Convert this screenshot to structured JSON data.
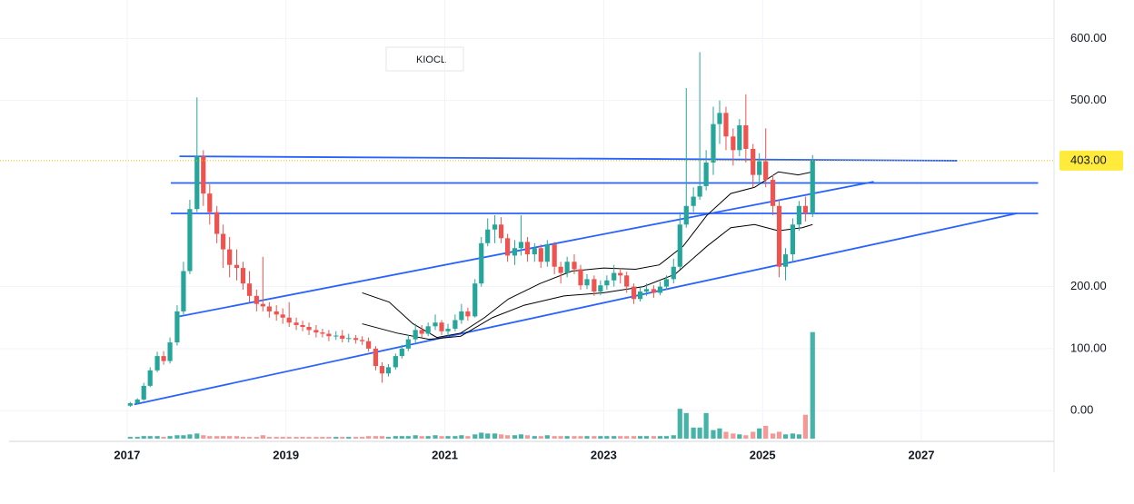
{
  "chart_data": {
    "type": "candlestick",
    "symbol": "KIOCL",
    "xlim": [
      2015.4,
      2028.67
    ],
    "ylim": [
      -48,
      662
    ],
    "xticks": [
      2017,
      2019,
      2021,
      2023,
      2025,
      2027
    ],
    "yticks": [
      {
        "value": 0,
        "label": "0.00"
      },
      {
        "value": 100,
        "label": "100.00"
      },
      {
        "value": 200,
        "label": "200.00"
      },
      {
        "value": 500,
        "label": "500.00"
      },
      {
        "value": 600,
        "label": "600.00"
      }
    ],
    "grid": true,
    "up_color": "#26a69a",
    "down_color": "#ef5350",
    "last_price": {
      "value": 403,
      "label": "403.00"
    },
    "last_price_color": "#ffeb3b",
    "candles": {
      "x": [
        2017.04,
        2017.13,
        2017.21,
        2017.29,
        2017.38,
        2017.46,
        2017.54,
        2017.63,
        2017.71,
        2017.79,
        2017.88,
        2017.96,
        2018.04,
        2018.13,
        2018.21,
        2018.29,
        2018.38,
        2018.46,
        2018.54,
        2018.63,
        2018.71,
        2018.79,
        2018.88,
        2018.96,
        2019.04,
        2019.13,
        2019.21,
        2019.29,
        2019.38,
        2019.46,
        2019.54,
        2019.63,
        2019.71,
        2019.79,
        2019.88,
        2019.96,
        2020.04,
        2020.13,
        2020.21,
        2020.29,
        2020.38,
        2020.46,
        2020.54,
        2020.63,
        2020.71,
        2020.79,
        2020.88,
        2020.96,
        2021.04,
        2021.13,
        2021.21,
        2021.29,
        2021.38,
        2021.46,
        2021.54,
        2021.63,
        2021.71,
        2021.79,
        2021.88,
        2021.96,
        2022.04,
        2022.13,
        2022.21,
        2022.29,
        2022.38,
        2022.46,
        2022.54,
        2022.63,
        2022.71,
        2022.79,
        2022.88,
        2022.96,
        2023.04,
        2023.13,
        2023.21,
        2023.29,
        2023.38,
        2023.46,
        2023.54,
        2023.63,
        2023.71,
        2023.79,
        2023.88,
        2023.96,
        2024.04,
        2024.13,
        2024.21,
        2024.29,
        2024.38,
        2024.46,
        2024.54,
        2024.63,
        2024.71,
        2024.79,
        2024.88,
        2024.96,
        2025.04,
        2025.13,
        2025.21,
        2025.29,
        2025.38,
        2025.46,
        2025.54,
        2025.63
      ],
      "open": [
        8,
        12,
        18,
        40,
        65,
        88,
        80,
        110,
        160,
        225,
        325,
        410,
        350,
        320,
        285,
        260,
        235,
        230,
        205,
        185,
        172,
        168,
        160,
        155,
        150,
        142,
        138,
        135,
        130,
        126,
        124,
        120,
        121,
        116,
        117,
        114,
        112,
        100,
        72,
        60,
        70,
        88,
        100,
        115,
        130,
        124,
        136,
        142,
        128,
        132,
        146,
        160,
        152,
        205,
        270,
        292,
        300,
        278,
        250,
        262,
        272,
        252,
        262,
        240,
        268,
        232,
        222,
        240,
        228,
        202,
        212,
        192,
        202,
        210,
        222,
        218,
        200,
        180,
        192,
        196,
        190,
        200,
        212,
        232,
        300,
        330,
        345,
        362,
        400,
        462,
        480,
        442,
        420,
        460,
        422,
        380,
        402,
        372,
        330,
        232,
        252,
        300,
        330,
        318
      ],
      "high": [
        14,
        20,
        45,
        70,
        95,
        96,
        118,
        170,
        240,
        340,
        505,
        420,
        365,
        330,
        300,
        280,
        260,
        240,
        225,
        195,
        248,
        175,
        170,
        165,
        175,
        150,
        145,
        142,
        138,
        132,
        130,
        128,
        130,
        124,
        122,
        120,
        118,
        104,
        78,
        75,
        92,
        106,
        122,
        140,
        138,
        142,
        155,
        146,
        140,
        155,
        172,
        166,
        212,
        280,
        310,
        315,
        312,
        285,
        275,
        315,
        280,
        270,
        268,
        275,
        272,
        240,
        248,
        252,
        235,
        220,
        218,
        210,
        218,
        235,
        230,
        224,
        205,
        198,
        205,
        202,
        208,
        218,
        245,
        320,
        520,
        360,
        578,
        420,
        490,
        500,
        490,
        455,
        470,
        510,
        430,
        415,
        455,
        380,
        340,
        262,
        310,
        338,
        345,
        412
      ],
      "low": [
        6,
        10,
        16,
        38,
        62,
        74,
        76,
        105,
        155,
        220,
        320,
        330,
        300,
        270,
        230,
        215,
        210,
        195,
        175,
        160,
        160,
        150,
        145,
        140,
        135,
        130,
        128,
        122,
        118,
        118,
        112,
        114,
        110,
        110,
        108,
        106,
        95,
        65,
        45,
        55,
        66,
        84,
        96,
        110,
        118,
        120,
        130,
        122,
        120,
        128,
        140,
        145,
        150,
        200,
        265,
        270,
        270,
        240,
        235,
        250,
        240,
        240,
        230,
        232,
        220,
        205,
        215,
        220,
        195,
        196,
        185,
        186,
        195,
        200,
        205,
        190,
        172,
        176,
        185,
        182,
        186,
        195,
        205,
        228,
        295,
        320,
        340,
        355,
        380,
        430,
        420,
        395,
        410,
        400,
        360,
        365,
        360,
        315,
        215,
        210,
        240,
        290,
        305,
        312
      ],
      "close": [
        12,
        18,
        40,
        65,
        88,
        80,
        110,
        160,
        225,
        325,
        410,
        350,
        320,
        285,
        260,
        235,
        230,
        205,
        185,
        172,
        168,
        160,
        155,
        150,
        142,
        138,
        135,
        130,
        126,
        124,
        120,
        121,
        116,
        117,
        114,
        112,
        100,
        72,
        60,
        70,
        88,
        100,
        115,
        130,
        124,
        136,
        142,
        128,
        132,
        146,
        160,
        152,
        205,
        270,
        292,
        300,
        278,
        250,
        262,
        272,
        252,
        262,
        240,
        268,
        232,
        222,
        240,
        228,
        202,
        212,
        192,
        202,
        210,
        222,
        218,
        200,
        180,
        192,
        196,
        190,
        200,
        212,
        232,
        300,
        330,
        345,
        362,
        400,
        462,
        480,
        442,
        420,
        460,
        422,
        380,
        402,
        372,
        330,
        232,
        252,
        300,
        330,
        318,
        403
      ],
      "volume": [
        2,
        2,
        3,
        3,
        3,
        2,
        3,
        4,
        4,
        5,
        6,
        4,
        3,
        3,
        3,
        3,
        3,
        2,
        2,
        2,
        4,
        2,
        2,
        2,
        2,
        2,
        2,
        2,
        2,
        2,
        2,
        2,
        2,
        2,
        2,
        2,
        3,
        3,
        3,
        2,
        3,
        3,
        3,
        4,
        3,
        3,
        4,
        3,
        3,
        3,
        4,
        3,
        5,
        7,
        6,
        6,
        5,
        4,
        4,
        5,
        4,
        3,
        3,
        4,
        3,
        3,
        3,
        3,
        3,
        3,
        3,
        3,
        3,
        3,
        3,
        3,
        3,
        3,
        3,
        3,
        3,
        3,
        4,
        35,
        30,
        13,
        13,
        30,
        10,
        12,
        8,
        6,
        5,
        4,
        8,
        12,
        15,
        6,
        8,
        5,
        6,
        5,
        28,
        125
      ]
    },
    "vlim": [
      0,
      130
    ],
    "moving_averages": [
      {
        "color": "#000000",
        "x": [
          2019.96,
          2020.3,
          2020.6,
          2020.9,
          2021.2,
          2021.5,
          2021.8,
          2022.2,
          2022.6,
          2023.0,
          2023.4,
          2023.7,
          2024.0,
          2024.3,
          2024.6,
          2024.9,
          2025.2,
          2025.45,
          2025.63
        ],
        "values": [
          190,
          175,
          140,
          118,
          125,
          150,
          180,
          205,
          225,
          230,
          228,
          235,
          265,
          315,
          350,
          360,
          385,
          380,
          385
        ]
      },
      {
        "color": "#000000",
        "x": [
          2019.96,
          2020.4,
          2020.8,
          2021.2,
          2021.6,
          2022.0,
          2022.5,
          2023.0,
          2023.5,
          2023.9,
          2024.3,
          2024.6,
          2024.9,
          2025.2,
          2025.5,
          2025.63
        ],
        "values": [
          140,
          125,
          115,
          120,
          150,
          170,
          185,
          190,
          200,
          220,
          265,
          295,
          300,
          290,
          295,
          300
        ]
      }
    ],
    "trendlines": [
      {
        "color": "#2962ff",
        "x": [
          2017.66,
          2027.45
        ],
        "values": [
          410,
          403
        ]
      },
      {
        "color": "#2962ff",
        "x": [
          2017.55,
          2028.47
        ],
        "values": [
          367,
          367
        ]
      },
      {
        "color": "#2962ff",
        "x": [
          2017.55,
          2028.47
        ],
        "values": [
          318,
          318
        ]
      },
      {
        "color": "#2962ff",
        "x": [
          2017.66,
          2026.4
        ],
        "values": [
          152,
          369
        ]
      },
      {
        "color": "#2962ff",
        "x": [
          2017.09,
          2028.2
        ],
        "values": [
          10,
          318
        ]
      }
    ]
  }
}
